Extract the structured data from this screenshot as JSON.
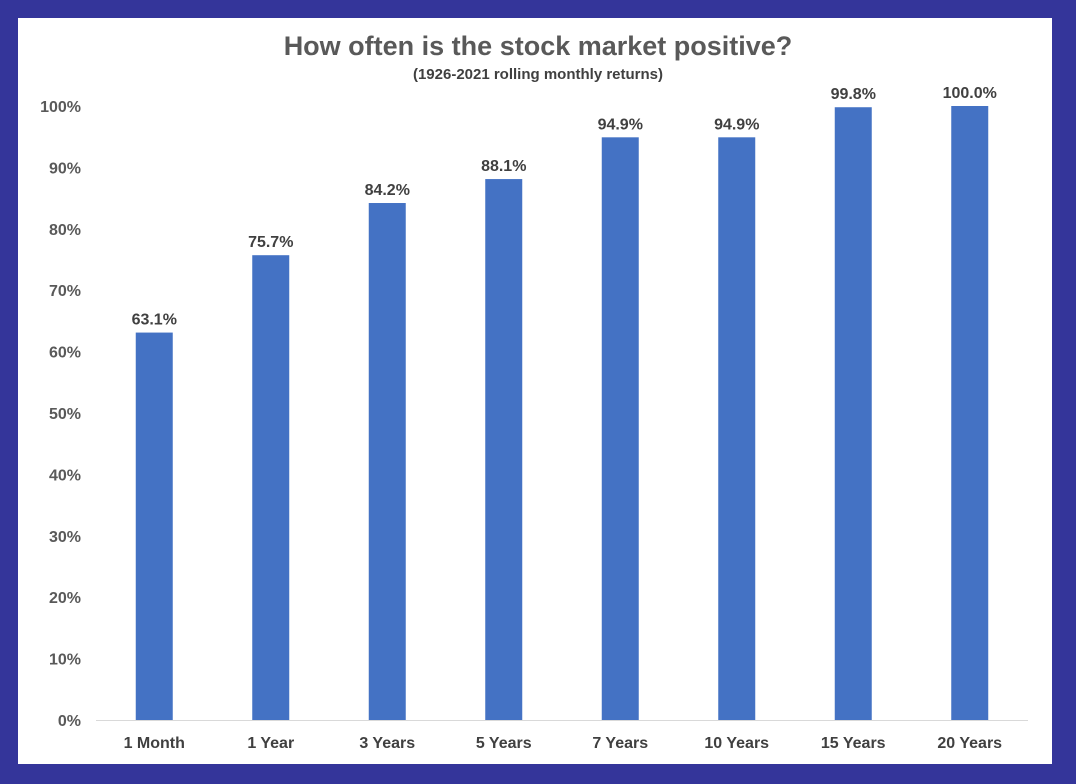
{
  "chart_data": {
    "type": "bar",
    "title": "How often is the stock market positive?",
    "subtitle": "(1926-2021 rolling monthly returns)",
    "xlabel": "",
    "ylabel": "",
    "categories": [
      "1 Month",
      "1 Year",
      "3 Years",
      "5 Years",
      "7 Years",
      "10 Years",
      "15 Years",
      "20 Years"
    ],
    "values": [
      63.1,
      75.7,
      84.2,
      88.1,
      94.9,
      94.9,
      99.8,
      100.0
    ],
    "data_labels": [
      "63.1%",
      "75.7%",
      "84.2%",
      "88.1%",
      "94.9%",
      "94.9%",
      "99.8%",
      "100.0%"
    ],
    "ylim": [
      0,
      100
    ],
    "y_ticks": [
      "0%",
      "10%",
      "20%",
      "30%",
      "40%",
      "50%",
      "60%",
      "70%",
      "80%",
      "90%",
      "100%"
    ],
    "grid": false,
    "legend": "none",
    "bar_color": "#4472c4",
    "frame_color": "#34359a"
  }
}
